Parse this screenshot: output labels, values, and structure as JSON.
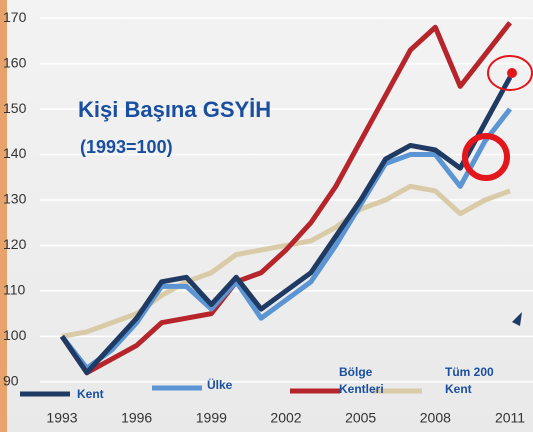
{
  "chart_data": {
    "type": "line",
    "annotations": [
      "Kişi Başına GSYİH",
      "(1993=100)"
    ],
    "x": [
      1993,
      1994,
      1995,
      1996,
      1997,
      1998,
      1999,
      2000,
      2001,
      2002,
      2003,
      2004,
      2005,
      2006,
      2007,
      2008,
      2009,
      2010,
      2011
    ],
    "series": [
      {
        "name": "Tüm 200 Kent",
        "color": "#d9cba8",
        "values": [
          100,
          101,
          103,
          105,
          109,
          112,
          114,
          118,
          119,
          120,
          121,
          124,
          128,
          130,
          133,
          132,
          127,
          130,
          132
        ]
      },
      {
        "name": "Bölge Kentleri",
        "color": "#b5252b",
        "values": [
          100,
          92,
          95,
          98,
          103,
          104,
          105,
          112,
          114,
          119,
          125,
          133,
          143,
          153,
          163,
          168,
          155,
          162,
          169
        ]
      },
      {
        "name": "Ülke",
        "color": "#5b95d3",
        "values": [
          100,
          93,
          97,
          103,
          111,
          111,
          106,
          112,
          104,
          108,
          112,
          120,
          129,
          138,
          140,
          140,
          133,
          143,
          150
        ]
      },
      {
        "name": "Kent",
        "color": "#1f3a63",
        "values": [
          100,
          92,
          98,
          104,
          112,
          113,
          107,
          113,
          106,
          110,
          114,
          122,
          130,
          139,
          142,
          141,
          137,
          147,
          157
        ]
      }
    ],
    "xlim": [
      1993,
      2011
    ],
    "xticks": [
      1993,
      1996,
      1999,
      2002,
      2005,
      2008,
      2011
    ],
    "ylim": [
      86,
      174
    ],
    "yticks": [
      90,
      100,
      110,
      120,
      130,
      140,
      150,
      160,
      170
    ],
    "grid": true
  }
}
